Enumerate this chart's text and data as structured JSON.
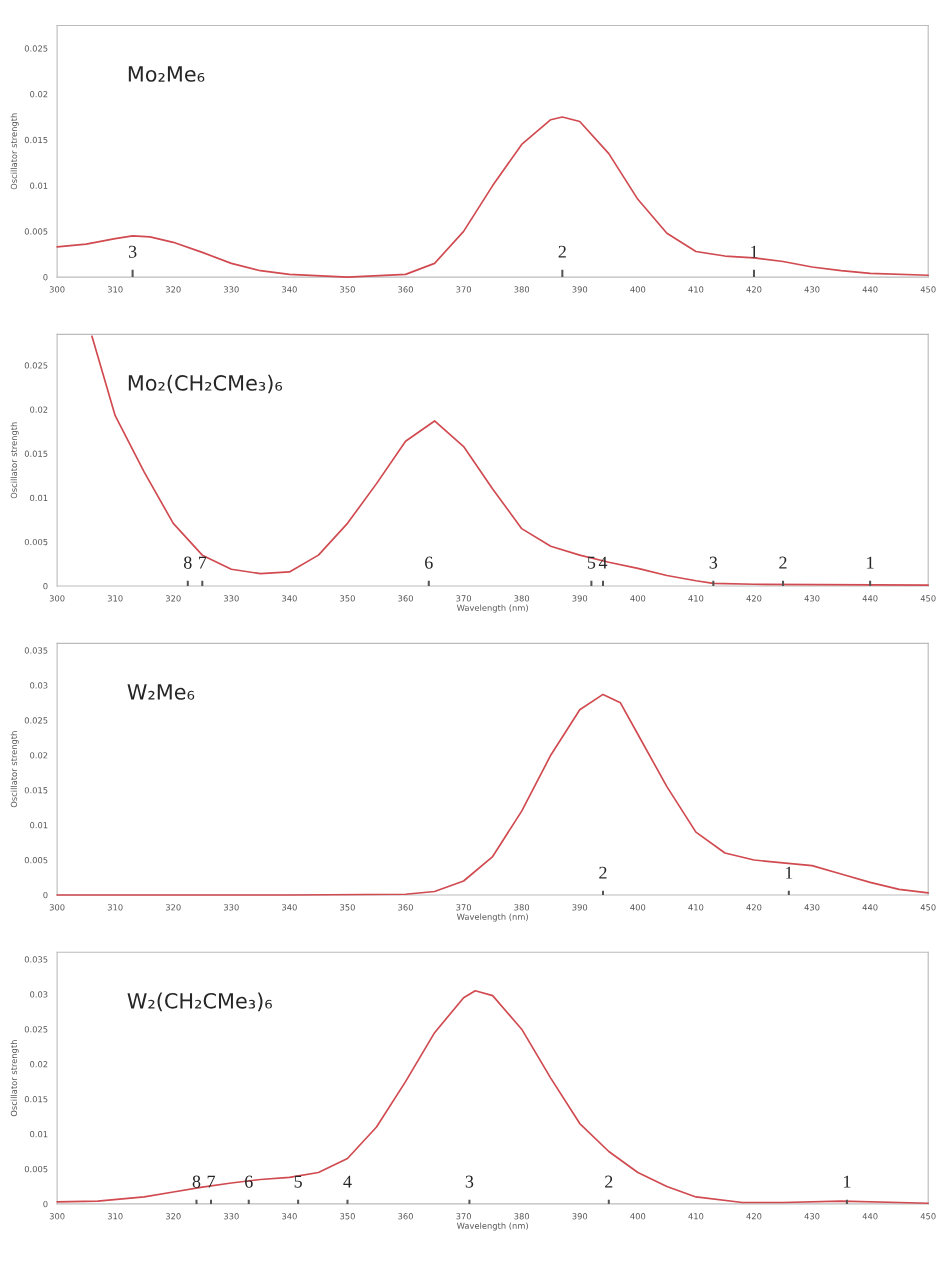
{
  "chart_data": [
    {
      "type": "line",
      "title": "Mo₂Me₆",
      "ylabel": "Oscillator strength",
      "x": [
        300,
        305,
        310,
        313,
        316,
        320,
        325,
        330,
        335,
        340,
        350,
        360,
        365,
        370,
        375,
        380,
        385,
        387,
        390,
        395,
        400,
        405,
        410,
        415,
        420,
        425,
        430,
        435,
        440,
        450
      ],
      "series": [
        {
          "color": "#d04a50",
          "values": [
            0.0033,
            0.0036,
            0.0042,
            0.0045,
            0.0044,
            0.0038,
            0.0027,
            0.0015,
            0.0007,
            0.0003,
            0.0,
            0.0003,
            0.0015,
            0.005,
            0.01,
            0.0145,
            0.0172,
            0.0175,
            0.017,
            0.0135,
            0.0085,
            0.0048,
            0.0028,
            0.0023,
            0.0021,
            0.0017,
            0.0011,
            0.0007,
            0.0004,
            0.0002
          ]
        },
        {
          "type": "bar",
          "color": "#555555",
          "x": [
            313,
            387,
            420
          ],
          "values": [
            0.0008,
            0.0008,
            0.0008
          ]
        }
      ],
      "annotations": [
        {
          "text": "3",
          "x": 313,
          "y": 0.0008
        },
        {
          "text": "2",
          "x": 387,
          "y": 0.0008
        },
        {
          "text": "1",
          "x": 420,
          "y": 0.0008
        }
      ],
      "xlim": [
        300,
        450
      ],
      "xticks": [
        300,
        310,
        320,
        330,
        340,
        350,
        360,
        370,
        380,
        390,
        400,
        410,
        420,
        430,
        440,
        450
      ],
      "ylim": [
        0,
        0.0275
      ],
      "yticks": [
        0,
        0.005,
        0.01,
        0.015,
        0.02,
        0.025
      ]
    },
    {
      "type": "line",
      "title": "Mo₂(CH₂CMe₃)₆",
      "ylabel": "Oscillator strength",
      "xlabel": "Wavelength (nm)",
      "x": [
        306,
        310,
        315,
        320,
        325,
        330,
        335,
        340,
        345,
        350,
        355,
        360,
        365,
        370,
        375,
        380,
        385,
        390,
        395,
        400,
        405,
        410,
        413,
        420,
        450
      ],
      "series": [
        {
          "color": "#d04a50",
          "values": [
            0.0283,
            0.0193,
            0.0129,
            0.0071,
            0.0035,
            0.0019,
            0.0014,
            0.0016,
            0.0035,
            0.0071,
            0.0116,
            0.0164,
            0.0187,
            0.0158,
            0.011,
            0.0065,
            0.0045,
            0.0035,
            0.0027,
            0.002,
            0.0012,
            0.0006,
            0.0003,
            0.0002,
            0.0001
          ]
        },
        {
          "type": "bar",
          "color": "#555555",
          "x": [
            322.5,
            325,
            364,
            392,
            394,
            413,
            425,
            440
          ],
          "values": [
            0.0006,
            0.0006,
            0.0006,
            0.0006,
            0.0006,
            0.0006,
            0.0006,
            0.0006
          ]
        }
      ],
      "annotations": [
        {
          "text": "8",
          "x": 322.5,
          "y": 0.0006
        },
        {
          "text": "7",
          "x": 325,
          "y": 0.0006
        },
        {
          "text": "6",
          "x": 364,
          "y": 0.0006
        },
        {
          "text": "5",
          "x": 392,
          "y": 0.0006
        },
        {
          "text": "4",
          "x": 394,
          "y": 0.0006
        },
        {
          "text": "3",
          "x": 413,
          "y": 0.0006
        },
        {
          "text": "2",
          "x": 425,
          "y": 0.0006
        },
        {
          "text": "1",
          "x": 440,
          "y": 0.0006
        }
      ],
      "xlim": [
        300,
        450
      ],
      "xticks": [
        300,
        310,
        320,
        330,
        340,
        350,
        360,
        370,
        380,
        390,
        400,
        410,
        420,
        430,
        440,
        450
      ],
      "ylim": [
        0,
        0.0285
      ],
      "yticks": [
        0,
        0.005,
        0.01,
        0.015,
        0.02,
        0.025
      ]
    },
    {
      "type": "line",
      "title": "W₂Me₆",
      "ylabel": "Oscillator strength",
      "xlabel": "Wavelength (nm)",
      "x": [
        300,
        340,
        360,
        365,
        370,
        375,
        380,
        385,
        390,
        394,
        397,
        400,
        405,
        410,
        415,
        420,
        425,
        430,
        435,
        440,
        445,
        450
      ],
      "series": [
        {
          "color": "#d04a50",
          "values": [
            0.0,
            0.0,
            0.0001,
            0.0005,
            0.002,
            0.0055,
            0.012,
            0.02,
            0.0265,
            0.0287,
            0.0275,
            0.023,
            0.0155,
            0.009,
            0.006,
            0.005,
            0.0046,
            0.0042,
            0.003,
            0.0018,
            0.0008,
            0.0003
          ]
        },
        {
          "type": "bar",
          "color": "#555555",
          "x": [
            394,
            426
          ],
          "values": [
            0.0006,
            0.0006
          ]
        }
      ],
      "annotations": [
        {
          "text": "2",
          "x": 394,
          "y": 0.0006
        },
        {
          "text": "1",
          "x": 426,
          "y": 0.0006
        }
      ],
      "xlim": [
        300,
        450
      ],
      "xticks": [
        300,
        310,
        320,
        330,
        340,
        350,
        360,
        370,
        380,
        390,
        400,
        410,
        420,
        430,
        440,
        450
      ],
      "ylim": [
        0,
        0.036
      ],
      "yticks": [
        0,
        0.005,
        0.01,
        0.015,
        0.02,
        0.025,
        0.03,
        0.035
      ]
    },
    {
      "type": "line",
      "title": "W₂(CH₂CMe₃)₆",
      "ylabel": "Oscillator strength",
      "xlabel": "Wavelength (nm)",
      "x": [
        300,
        307,
        315,
        320,
        325,
        330,
        335,
        340,
        345,
        350,
        355,
        360,
        365,
        370,
        372,
        375,
        380,
        385,
        390,
        395,
        400,
        405,
        410,
        418,
        425,
        435,
        445,
        450
      ],
      "series": [
        {
          "color": "#d04a50",
          "values": [
            0.0003,
            0.0004,
            0.001,
            0.0017,
            0.0024,
            0.003,
            0.0035,
            0.0038,
            0.0045,
            0.0065,
            0.011,
            0.0175,
            0.0245,
            0.0295,
            0.0305,
            0.0298,
            0.025,
            0.018,
            0.0115,
            0.0075,
            0.0045,
            0.0025,
            0.001,
            0.0002,
            0.0002,
            0.0004,
            0.0002,
            0.0001
          ]
        },
        {
          "type": "bar",
          "color": "#555555",
          "x": [
            324,
            326.5,
            333,
            341.5,
            350,
            371,
            395,
            436
          ],
          "values": [
            0.0006,
            0.0006,
            0.0006,
            0.0006,
            0.0006,
            0.0006,
            0.0006,
            0.0006
          ]
        }
      ],
      "annotations": [
        {
          "text": "8",
          "x": 324,
          "y": 0.0006
        },
        {
          "text": "7",
          "x": 326.5,
          "y": 0.0006
        },
        {
          "text": "6",
          "x": 333,
          "y": 0.0006
        },
        {
          "text": "5",
          "x": 341.5,
          "y": 0.0006
        },
        {
          "text": "4",
          "x": 350,
          "y": 0.0006
        },
        {
          "text": "3",
          "x": 371,
          "y": 0.0006
        },
        {
          "text": "2",
          "x": 395,
          "y": 0.0006
        },
        {
          "text": "1",
          "x": 436,
          "y": 0.0006
        }
      ],
      "xlim": [
        300,
        450
      ],
      "xticks": [
        300,
        310,
        320,
        330,
        340,
        350,
        360,
        370,
        380,
        390,
        400,
        410,
        420,
        430,
        440,
        450
      ],
      "ylim": [
        0,
        0.036
      ],
      "yticks": [
        0,
        0.005,
        0.01,
        0.015,
        0.02,
        0.025,
        0.03,
        0.035
      ]
    }
  ]
}
